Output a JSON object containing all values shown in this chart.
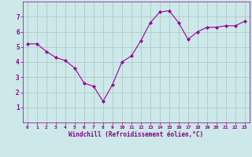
{
  "x": [
    0,
    1,
    2,
    3,
    4,
    5,
    6,
    7,
    8,
    9,
    10,
    11,
    12,
    13,
    14,
    15,
    16,
    17,
    18,
    19,
    20,
    21,
    22,
    23
  ],
  "y": [
    5.2,
    5.2,
    4.7,
    4.3,
    4.1,
    3.6,
    2.6,
    2.4,
    1.4,
    2.5,
    4.0,
    4.4,
    5.4,
    6.6,
    7.3,
    7.4,
    6.6,
    5.5,
    6.0,
    6.3,
    6.3,
    6.4,
    6.4,
    6.7
  ],
  "line_color": "#990099",
  "marker": "D",
  "marker_size": 2.0,
  "bg_color": "#cce8e8",
  "grid_color": "#b0c8c8",
  "xlabel": "Windchill (Refroidissement éolien,°C)",
  "xlabel_color": "#880088",
  "tick_color": "#880088",
  "ylim": [
    0,
    8
  ],
  "xlim": [
    -0.5,
    23.5
  ],
  "yticks": [
    1,
    2,
    3,
    4,
    5,
    6,
    7
  ],
  "xticks": [
    0,
    1,
    2,
    3,
    4,
    5,
    6,
    7,
    8,
    9,
    10,
    11,
    12,
    13,
    14,
    15,
    16,
    17,
    18,
    19,
    20,
    21,
    22,
    23
  ],
  "figsize": [
    3.2,
    2.0
  ],
  "dpi": 100
}
